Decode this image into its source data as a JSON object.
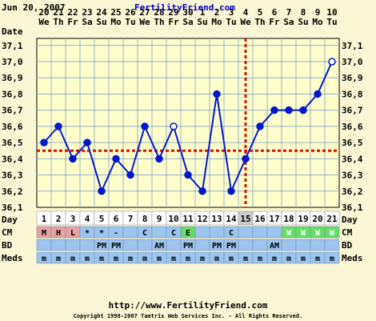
{
  "header": {
    "date": "Jun 20, 2007",
    "site": "FertilityFriend.com"
  },
  "footer": {
    "url": "http://www.FertilityFriend.com",
    "copyright": "Copyright 1998-2007 Tamtris Web Services Inc. - All Rights Reserved."
  },
  "colors": {
    "background": "#fbf6d3",
    "plot_background": "#ffffcc",
    "grid": "#9ab0c8",
    "line": "#0018d0",
    "coverline": "#dd1100",
    "title_blue": "#0000cc",
    "row_blue": "#9cc4ee",
    "cm_red": "#e8a0a0",
    "cm_green": "#66dd66"
  },
  "chart_data": {
    "type": "line",
    "row_labels": {
      "date": "Date",
      "day": "Day",
      "cm": "CM",
      "bd": "BD",
      "meds": "Meds"
    },
    "date_numbers": [
      "20",
      "21",
      "22",
      "23",
      "24",
      "25",
      "26",
      "27",
      "28",
      "29",
      "30",
      "1",
      "2",
      "3",
      "4",
      "5",
      "6",
      "7",
      "8",
      "9",
      "10"
    ],
    "weekdays": [
      "We",
      "Th",
      "Fr",
      "Sa",
      "Su",
      "Mo",
      "Tu",
      "We",
      "Th",
      "Fr",
      "Sa",
      "Su",
      "Mo",
      "Tu",
      "We",
      "Th",
      "Fr",
      "Sa",
      "Su",
      "Mo",
      "Tu"
    ],
    "days": [
      "1",
      "2",
      "3",
      "4",
      "5",
      "6",
      "7",
      "8",
      "9",
      "10",
      "11",
      "12",
      "13",
      "14",
      "15",
      "16",
      "17",
      "18",
      "19",
      "20",
      "21"
    ],
    "highlight_day": "15",
    "temperatures": [
      36.5,
      36.6,
      36.4,
      36.5,
      36.2,
      36.4,
      36.3,
      36.6,
      36.4,
      36.6,
      36.3,
      36.2,
      36.8,
      36.2,
      36.4,
      36.6,
      36.7,
      36.7,
      36.7,
      36.8,
      37.0
    ],
    "open_circle_days": [
      10,
      21
    ],
    "ylim": [
      36.1,
      37.0
    ],
    "y_ticks": [
      "37,1",
      "37,0",
      "36,9",
      "36,8",
      "36,7",
      "36,6",
      "36,5",
      "36,4",
      "36,3",
      "36,2",
      "36,1"
    ],
    "coverline": 36.45,
    "ovulation_day": 15,
    "cm": [
      "M",
      "H",
      "L",
      "*",
      "*",
      "-",
      "",
      "C",
      "",
      "C",
      "E",
      "",
      "",
      "C",
      "",
      "",
      "",
      "W",
      "W",
      "W",
      "W"
    ],
    "bd": [
      "",
      "",
      "",
      "",
      "PM",
      "PM",
      "",
      "",
      "AM",
      "",
      "PM",
      "",
      "PM",
      "PM",
      "",
      "",
      "AM",
      "",
      "",
      "",
      ""
    ],
    "meds": [
      "m",
      "m",
      "m",
      "m",
      "m",
      "m",
      "m",
      "m",
      "m",
      "m",
      "m",
      "m",
      "m",
      "m",
      "m",
      "m",
      "m",
      "m",
      "m",
      "m",
      "m"
    ]
  }
}
